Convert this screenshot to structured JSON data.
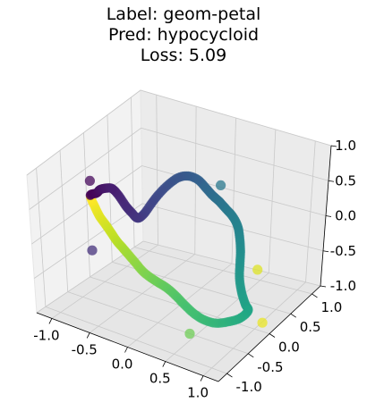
{
  "title": {
    "label_line": "Label: geom-petal",
    "pred_line": "Pred: hypocycloid",
    "loss_line": "Loss: 5.09"
  },
  "chart_data": {
    "type": "scatter",
    "projection": "3d",
    "title": "Label: geom-petal\nPred: hypocycloid\nLoss: 5.09",
    "xlim": [
      -1.2,
      1.2
    ],
    "ylim": [
      -1.2,
      1.2
    ],
    "zlim": [
      -1.0,
      1.0
    ],
    "x_ticks": [
      "-1.0",
      "-0.5",
      "0.0",
      "0.5",
      "1.0"
    ],
    "y_ticks": [
      "-1.0",
      "-0.5",
      "0.0",
      "0.5",
      "1.0"
    ],
    "z_ticks": [
      "-1.0",
      "-0.5",
      "0.0",
      "0.5",
      "1.0"
    ],
    "x_tick_values": [
      -1.0,
      -0.5,
      0.0,
      0.5,
      1.0
    ],
    "y_tick_values": [
      -1.0,
      -0.5,
      0.0,
      0.5,
      1.0
    ],
    "z_tick_values": [
      -1.0,
      -0.5,
      0.0,
      0.5,
      1.0
    ],
    "grid": true,
    "colormap": "viridis",
    "marker_alpha": 0.75,
    "points": [
      {
        "x": -1.05,
        "y": -0.15,
        "z": 0.25
      },
      {
        "x": -0.93,
        "y": -0.2,
        "z": 0.35
      },
      {
        "x": -0.85,
        "y": -0.25,
        "z": 0.45
      },
      {
        "x": -0.75,
        "y": -0.28,
        "z": 0.52
      },
      {
        "x": -0.65,
        "y": -0.3,
        "z": 0.56
      },
      {
        "x": -0.58,
        "y": -0.28,
        "z": 0.48
      },
      {
        "x": -0.53,
        "y": -0.22,
        "z": 0.32
      },
      {
        "x": -0.5,
        "y": -0.15,
        "z": 0.2
      },
      {
        "x": -0.47,
        "y": -0.08,
        "z": 0.1
      },
      {
        "x": -0.42,
        "y": -0.02,
        "z": 0.15
      },
      {
        "x": -0.36,
        "y": 0.05,
        "z": 0.28
      },
      {
        "x": -0.3,
        "y": 0.12,
        "z": 0.4
      },
      {
        "x": -0.22,
        "y": 0.2,
        "z": 0.52
      },
      {
        "x": -0.14,
        "y": 0.28,
        "z": 0.6
      },
      {
        "x": -0.05,
        "y": 0.34,
        "z": 0.62
      },
      {
        "x": 0.05,
        "y": 0.38,
        "z": 0.58
      },
      {
        "x": 0.15,
        "y": 0.38,
        "z": 0.5
      },
      {
        "x": 0.25,
        "y": 0.36,
        "z": 0.44
      },
      {
        "x": 0.35,
        "y": 0.34,
        "z": 0.4
      },
      {
        "x": 0.45,
        "y": 0.32,
        "z": 0.34
      },
      {
        "x": 0.55,
        "y": 0.3,
        "z": 0.28
      },
      {
        "x": 0.65,
        "y": 0.25,
        "z": 0.2
      },
      {
        "x": 0.72,
        "y": 0.18,
        "z": 0.1
      },
      {
        "x": 0.78,
        "y": 0.1,
        "z": -0.02
      },
      {
        "x": 0.82,
        "y": 0.02,
        "z": -0.15
      },
      {
        "x": 0.86,
        "y": -0.06,
        "z": -0.3
      },
      {
        "x": 0.92,
        "y": -0.12,
        "z": -0.45
      },
      {
        "x": 1.0,
        "y": -0.18,
        "z": -0.55
      },
      {
        "x": 1.06,
        "y": -0.22,
        "z": -0.6
      },
      {
        "x": 1.0,
        "y": -0.3,
        "z": -0.68
      },
      {
        "x": 0.88,
        "y": -0.36,
        "z": -0.74
      },
      {
        "x": 0.74,
        "y": -0.42,
        "z": -0.78
      },
      {
        "x": 0.6,
        "y": -0.46,
        "z": -0.76
      },
      {
        "x": 0.48,
        "y": -0.48,
        "z": -0.7
      },
      {
        "x": 0.36,
        "y": -0.48,
        "z": -0.62
      },
      {
        "x": 0.24,
        "y": -0.46,
        "z": -0.55
      },
      {
        "x": 0.12,
        "y": -0.44,
        "z": -0.5
      },
      {
        "x": 0.0,
        "y": -0.42,
        "z": -0.48
      },
      {
        "x": -0.12,
        "y": -0.4,
        "z": -0.46
      },
      {
        "x": -0.24,
        "y": -0.38,
        "z": -0.42
      },
      {
        "x": -0.36,
        "y": -0.34,
        "z": -0.36
      },
      {
        "x": -0.48,
        "y": -0.3,
        "z": -0.3
      },
      {
        "x": -0.58,
        "y": -0.26,
        "z": -0.26
      },
      {
        "x": -0.68,
        "y": -0.22,
        "z": -0.22
      },
      {
        "x": -0.78,
        "y": -0.18,
        "z": -0.15
      },
      {
        "x": -0.86,
        "y": -0.16,
        "z": -0.08
      },
      {
        "x": -0.94,
        "y": -0.15,
        "z": 0.0
      },
      {
        "x": -1.0,
        "y": -0.14,
        "z": 0.1
      }
    ],
    "highlight_markers": [
      {
        "x": -1.08,
        "y": -0.1,
        "z": 0.42,
        "c": 0.02
      },
      {
        "x": -0.9,
        "y": -0.4,
        "z": -0.35,
        "c": 0.14
      },
      {
        "x": 0.3,
        "y": 0.45,
        "z": 0.55,
        "c": 0.4
      },
      {
        "x": 1.1,
        "y": -0.05,
        "z": -0.1,
        "c": 0.95
      },
      {
        "x": 1.05,
        "y": 0.1,
        "z": -0.95,
        "c": 0.97
      },
      {
        "x": 0.55,
        "y": -0.7,
        "z": -0.85,
        "c": 0.78
      }
    ]
  }
}
